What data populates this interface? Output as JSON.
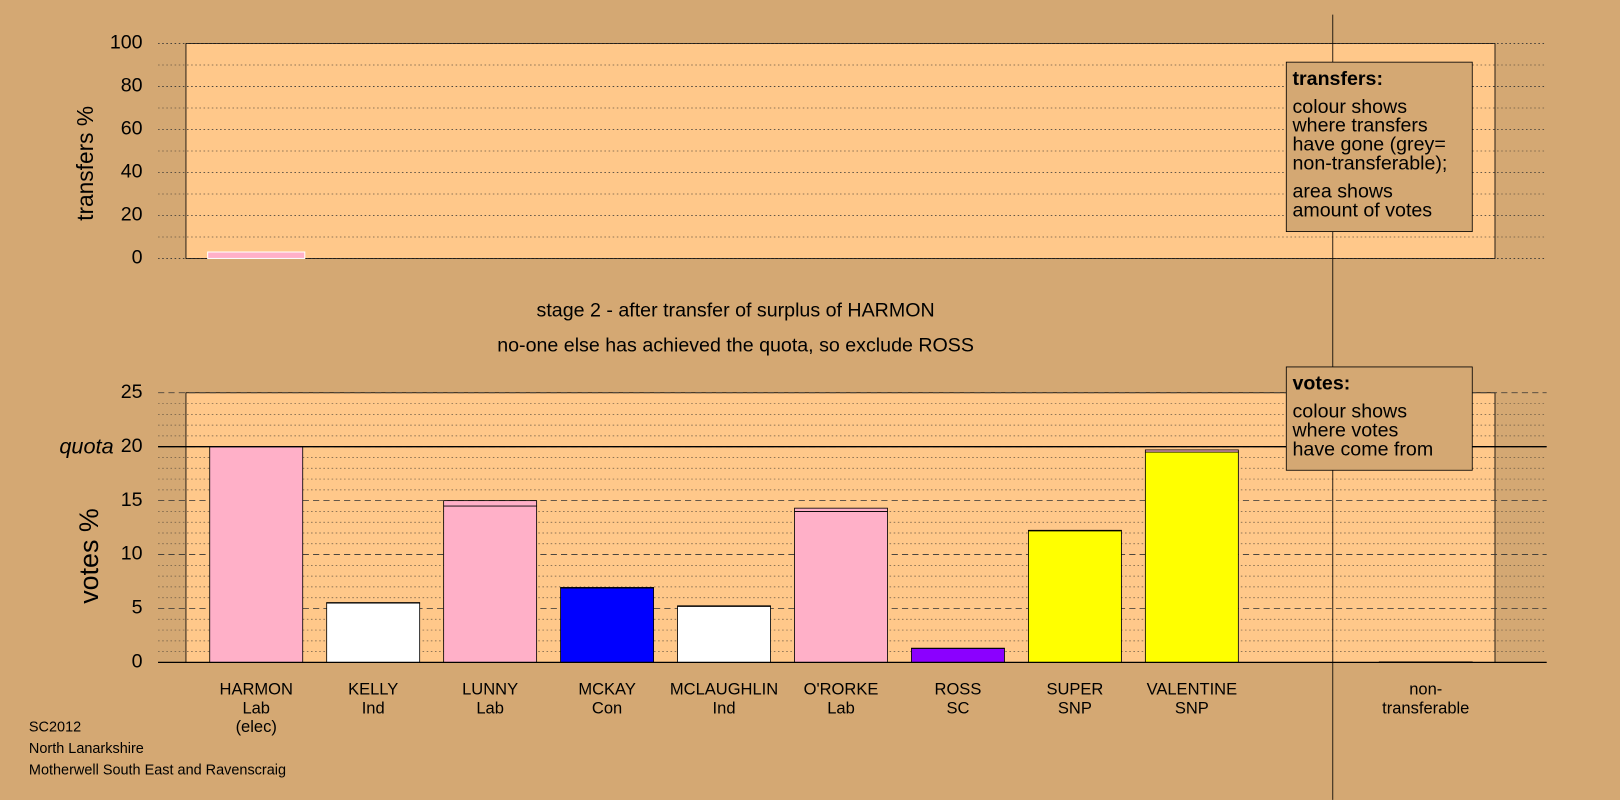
{
  "chart_data": [
    {
      "type": "bar",
      "ylabel": "transfers %",
      "values": [
        3
      ],
      "color": "#ffb0c8",
      "ylim": [
        0,
        100
      ],
      "yticks": [
        0,
        20,
        40,
        60,
        80,
        100
      ],
      "minor_yticks": [
        10,
        30,
        50,
        70,
        90
      ],
      "legend": {
        "title": "transfers:",
        "lines": [
          "colour shows",
          "where transfers",
          "have gone (grey=",
          "non-transferable);"
        ],
        "lines2": [
          "area shows",
          "amount of votes"
        ]
      }
    },
    {
      "type": "stacked_bar",
      "ylabel": "votes %",
      "categories": [
        [
          "HARMON",
          "Lab",
          "(elec)"
        ],
        [
          "KELLY",
          "Ind"
        ],
        [
          "LUNNY",
          "Lab"
        ],
        [
          "MCKAY",
          "Con"
        ],
        [
          "MCLAUGHLIN",
          "Ind"
        ],
        [
          "O'RORKE",
          "Lab"
        ],
        [
          "ROSS",
          "SC"
        ],
        [
          "SUPER",
          "SNP"
        ],
        [
          "VALENTINE",
          "SNP"
        ],
        [
          "non-",
          "transferable"
        ]
      ],
      "series": [
        {
          "colors": [
            "#ffb0c8",
            "#ffffff",
            "#ffb0c8",
            "#0000ff",
            "#ffffff",
            "#ffb0c8",
            "#8b00ff",
            "#ffff00",
            "#ffff00",
            "#cccccc"
          ],
          "values": [
            20,
            5.5,
            14.5,
            6.9,
            5.2,
            14.0,
            1.3,
            12.2,
            19.5,
            0
          ]
        },
        {
          "color": "#ffb0c8",
          "values": [
            0,
            0.05,
            0.5,
            0.05,
            0.05,
            0.3,
            0.02,
            0.05,
            0.2,
            0.05
          ]
        }
      ],
      "ylim": [
        0,
        25
      ],
      "yticks": [
        0,
        5,
        10,
        15,
        20,
        25
      ],
      "minor_yticks": [
        1,
        2,
        3,
        4,
        6,
        7,
        8,
        9,
        11,
        12,
        13,
        14,
        16,
        17,
        18,
        19,
        21,
        22,
        23,
        24
      ],
      "quota": {
        "label": "quota",
        "value": 20
      },
      "legend": {
        "title": "votes:",
        "lines": [
          "colour shows",
          "where votes",
          "have come from"
        ]
      }
    }
  ],
  "stage_notes": [
    "stage 2 - after transfer of surplus of HARMON",
    "no-one else has achieved the quota, so exclude ROSS"
  ],
  "footer": [
    "SC2012",
    "North Lanarkshire",
    "Motherwell South East and Ravenscraig"
  ]
}
